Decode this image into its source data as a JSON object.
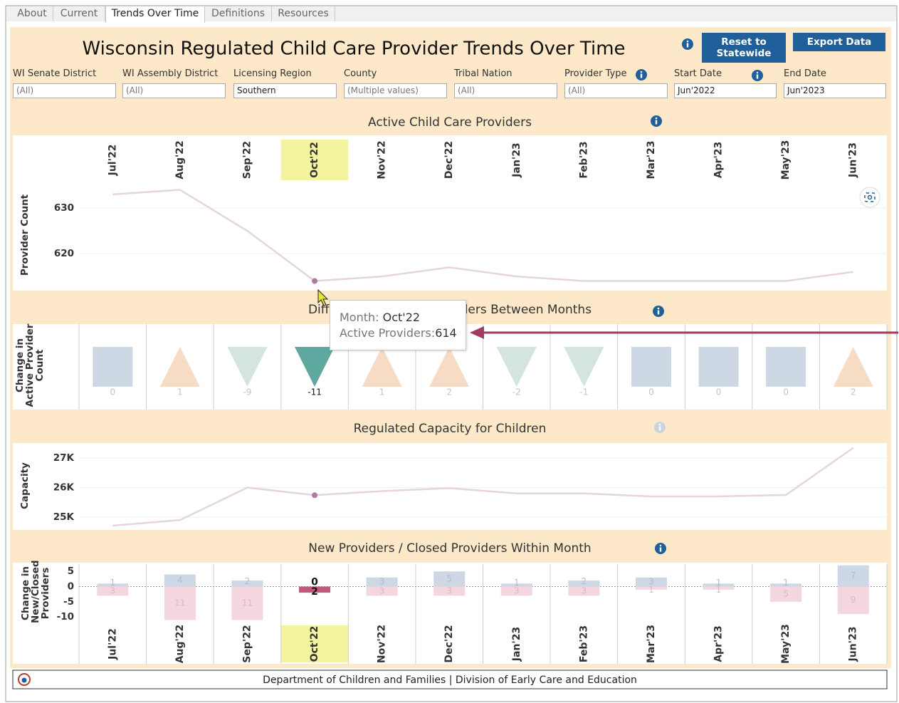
{
  "tabs": [
    "About",
    "Current",
    "Trends Over Time",
    "Definitions",
    "Resources"
  ],
  "active_tab": 2,
  "header": {
    "title": "Wisconsin Regulated Child Care Provider Trends Over Time",
    "buttons": [
      "Reset to Statewide",
      "Export Data"
    ]
  },
  "filters": [
    {
      "label": "WI Senate District",
      "value": "(All)"
    },
    {
      "label": "WI Assembly District",
      "value": "(All)"
    },
    {
      "label": "Licensing Region",
      "value": "Southern"
    },
    {
      "label": "County",
      "value": "(Multiple values)"
    },
    {
      "label": "Tribal Nation",
      "value": "(All)"
    },
    {
      "label": "Provider Type",
      "value": "(All)"
    },
    {
      "label": "Start Date",
      "value": "Jun'2022"
    },
    {
      "label": "End Date",
      "value": "Jun'2023"
    }
  ],
  "chart_data": [
    {
      "type": "line",
      "title": "Active Child Care Providers",
      "y_label": "Provider Count",
      "categories": [
        "Jul'22",
        "Aug'22",
        "Sep'22",
        "Oct'22",
        "Nov'22",
        "Dec'22",
        "Jan'23",
        "Feb'23",
        "Mar'23",
        "Apr'23",
        "May'23",
        "Jun'23"
      ],
      "values": [
        633,
        634,
        625,
        614,
        615,
        617,
        615,
        614,
        614,
        614,
        614,
        616
      ],
      "ylim": [
        611.9,
        635.8
      ],
      "yticks": [
        620,
        630
      ],
      "grid": true,
      "color": "#e6d5dc",
      "point_color": "#b07a9c",
      "highlight": "Oct'22",
      "highlight_band": "#f4f4a0"
    },
    {
      "type": "shape",
      "title": "Difference in Active Providers Between Months",
      "y_label": "Change in Active Provider Count",
      "values": [
        0,
        1,
        -9,
        -11,
        1,
        2,
        -2,
        -1,
        0,
        0,
        0,
        2
      ],
      "colors": {
        "zero": "#cdd8e4",
        "up": "#f6dcc4",
        "down": "#d3e4e1"
      },
      "highlight": "Oct'22",
      "highlight_color": "#5fa8a0"
    },
    {
      "type": "line",
      "title": "Regulated Capacity for Children",
      "y_label": "Capacity",
      "values": [
        24710,
        24900,
        26000,
        25740,
        25880,
        25980,
        25800,
        25800,
        25700,
        25700,
        25750,
        27340
      ],
      "ylim": [
        24566,
        27506
      ],
      "yticks": [
        {
          "value": 25000,
          "label": "25K"
        },
        {
          "value": 26000,
          "label": "26K"
        },
        {
          "value": 27000,
          "label": "27K"
        }
      ],
      "grid": true,
      "color": "#e6d5dc",
      "point_color": "#b07a9c",
      "highlight": "Oct'22"
    },
    {
      "type": "bar",
      "title": "New Providers / Closed Providers Within Month",
      "y_label": "Change in New/Closed Providers",
      "categories": [
        "Jul'22",
        "Aug'22",
        "Sep'22",
        "Oct'22",
        "Nov'22",
        "Dec'22",
        "Jan'23",
        "Feb'23",
        "Mar'23",
        "Apr'23",
        "May'23",
        "Jun'23"
      ],
      "series": [
        {
          "color": "#cdd8e4",
          "label_color": "#aebdd0",
          "values": [
            1,
            4,
            2,
            0,
            3,
            5,
            1,
            2,
            3,
            1,
            1,
            7
          ]
        },
        {
          "color": "#f3d6de",
          "label_color": "#e6b3c3",
          "values": [
            -3,
            -11,
            -11,
            -2,
            -3,
            -3,
            -3,
            -3,
            -1,
            -1,
            -5,
            -9
          ],
          "value_labels": [
            "3",
            "11",
            "11",
            "2",
            "3",
            "3",
            "3",
            "3",
            "1",
            "1",
            "5",
            "9"
          ]
        }
      ],
      "ylim": [
        -12.3,
        7.4
      ],
      "yticks": [
        -10,
        -5,
        0,
        5
      ],
      "zero_line": true,
      "highlight": "Oct'22",
      "highlight_color": "#c0587a",
      "highlight_band": "#f4f4a0"
    }
  ],
  "tooltip": {
    "month_label": "Month:",
    "value_label": "Active Providers:"
  },
  "footer": "Department of Children and Families | Division of Early Care and Education"
}
